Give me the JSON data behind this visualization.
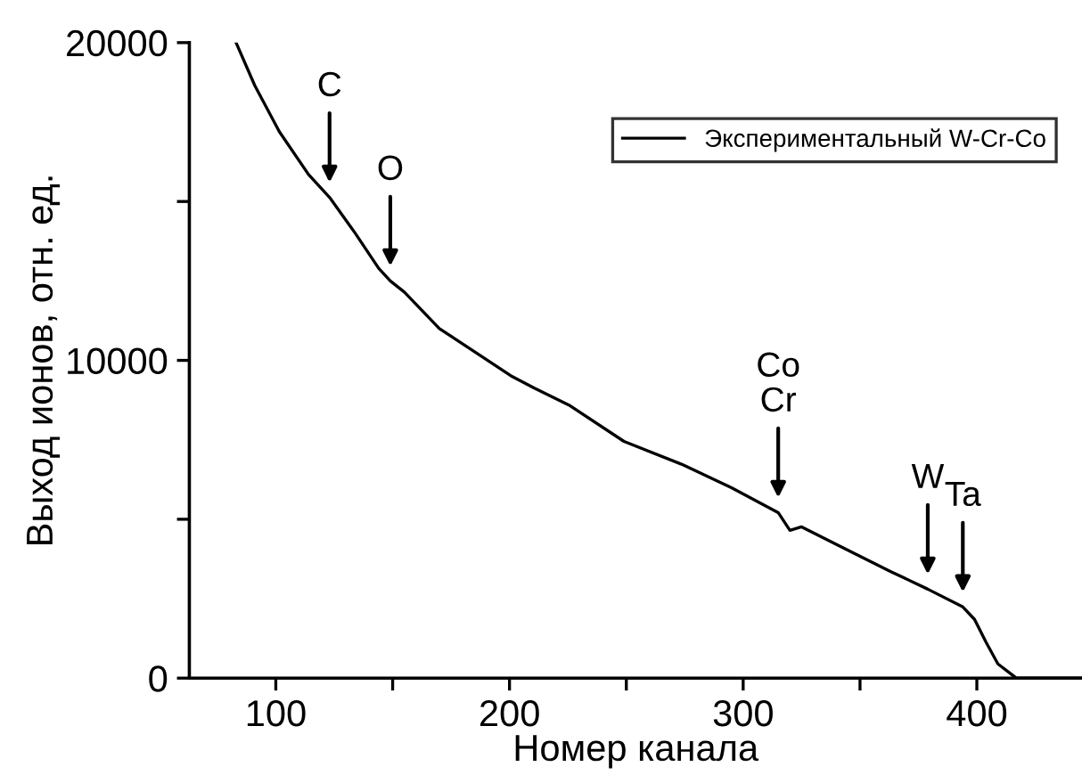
{
  "chart_data": {
    "type": "line",
    "xlabel": "Номер канала",
    "ylabel": "Выход ионов, отн. ед.",
    "x": [
      83,
      91,
      101.5,
      114,
      123,
      134,
      144,
      149,
      155,
      170,
      185.5,
      200.5,
      210.5,
      226,
      249,
      274,
      295,
      315,
      320,
      325,
      343,
      363,
      379,
      394,
      399,
      404,
      409,
      415,
      417,
      445
    ],
    "series": [
      {
        "name": "Экспериментальный W-Cr-Co",
        "color": "#000000",
        "values": [
          20000,
          18650,
          17200,
          15850,
          15130,
          14000,
          12900,
          12500,
          12150,
          11000,
          10250,
          9520,
          9130,
          8570,
          7450,
          6720,
          5990,
          5210,
          4650,
          4760,
          4090,
          3360,
          2800,
          2240,
          1850,
          1120,
          450,
          110,
          0,
          0
        ]
      }
    ],
    "xlim": [
      63,
      445
    ],
    "ylim": [
      0,
      20000
    ],
    "xticks": [
      100,
      {
        "value": 150,
        "label": null
      },
      200,
      {
        "value": 250,
        "label": null
      },
      300,
      {
        "value": 350,
        "label": null
      },
      400
    ],
    "yticks": [
      0,
      {
        "value": 5000,
        "label": null
      },
      10000,
      {
        "value": 15000,
        "label": null
      },
      20000
    ],
    "annotations": [
      {
        "text": "C",
        "x": 123,
        "y": 15130
      },
      {
        "text": "O",
        "x": 149,
        "y": 12500
      },
      {
        "text": "Co\nCr",
        "x": 315,
        "y": 5210
      },
      {
        "text": "W",
        "x": 379,
        "y": 2800
      },
      {
        "text": "Ta",
        "x": 394,
        "y": 2240
      }
    ],
    "legend": "top right",
    "grid": false,
    "marker": "none",
    "line_style": "solid"
  }
}
